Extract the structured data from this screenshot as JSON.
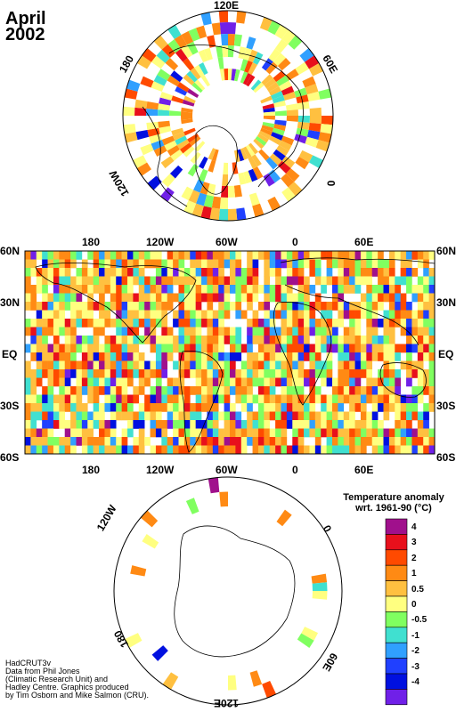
{
  "title": {
    "month": "April",
    "year": "2002"
  },
  "map_labels": {
    "north_polar": {
      "lon_120e": "120E",
      "lon_60e": "60E",
      "lon_0": "0",
      "lon_180": "180",
      "lon_120w": "120W"
    },
    "south_polar": {
      "lon_120w": "120W",
      "lon_0": "0",
      "lon_60e": "60E",
      "lon_180": "180",
      "lon_120e": "120E"
    },
    "equirect_top_lon": [
      "180",
      "120W",
      "60W",
      "0",
      "60E"
    ],
    "equirect_bottom_lon": [
      "180",
      "120W",
      "60W",
      "0",
      "60E"
    ],
    "equirect_lat_left": [
      "60N",
      "30N",
      "EQ",
      "30S",
      "60S"
    ],
    "equirect_lat_right": [
      "60N",
      "30N",
      "EQ",
      "30S",
      "60S"
    ]
  },
  "legend": {
    "title_line1": "Temperature anomaly",
    "title_line2": "wrt. 1961-90  (°C)",
    "bins": [
      {
        "label": "4",
        "color": "#a0108c"
      },
      {
        "label": "3",
        "color": "#e8101c"
      },
      {
        "label": "2",
        "color": "#ff4a00"
      },
      {
        "label": "1",
        "color": "#ff8a14"
      },
      {
        "label": "0.5",
        "color": "#ffc040"
      },
      {
        "label": "0",
        "color": "#ffff80"
      },
      {
        "label": "-0.5",
        "color": "#80ff60"
      },
      {
        "label": "-1",
        "color": "#40e0d0"
      },
      {
        "label": "-2",
        "color": "#30a0ff"
      },
      {
        "label": "-3",
        "color": "#2040ff"
      },
      {
        "label": "-4",
        "color": "#0010e0"
      },
      {
        "label": "",
        "color": "#7020e8"
      }
    ]
  },
  "credits": [
    "HadCRUT3v",
    "Data from Phil Jones",
    "(Climatic Research Unit) and",
    "Hadley Centre.  Graphics produced",
    "by Tim Osborn and Mike Salmon (CRU)."
  ],
  "colors": {
    "land_line": "#000000",
    "frame": "#000000"
  }
}
